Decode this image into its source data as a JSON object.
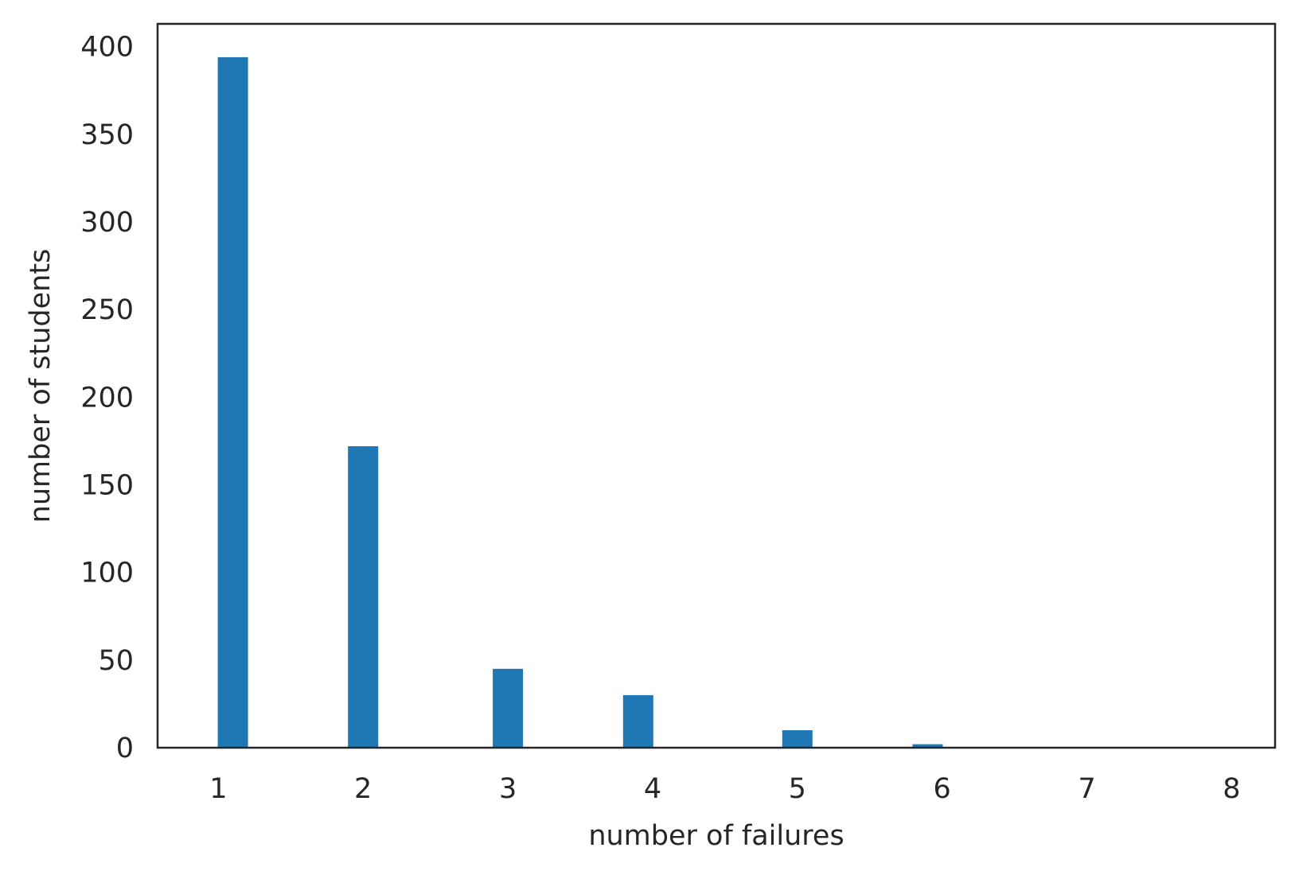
{
  "chart_data": {
    "type": "bar",
    "title": "",
    "xlabel": "number of failures",
    "ylabel": "number of students",
    "x": [
      1.1,
      2.0,
      3.0,
      3.9,
      5.0,
      5.9
    ],
    "values": [
      394,
      172,
      45,
      30,
      10,
      2
    ],
    "xlim": [
      0.58,
      8.3
    ],
    "ylim": [
      0,
      413
    ],
    "xticks": [
      1,
      2,
      3,
      4,
      5,
      6,
      7,
      8
    ],
    "yticks": [
      0,
      50,
      100,
      150,
      200,
      250,
      300,
      350,
      400
    ],
    "bar_color": "#1f77b4",
    "grid": false
  }
}
